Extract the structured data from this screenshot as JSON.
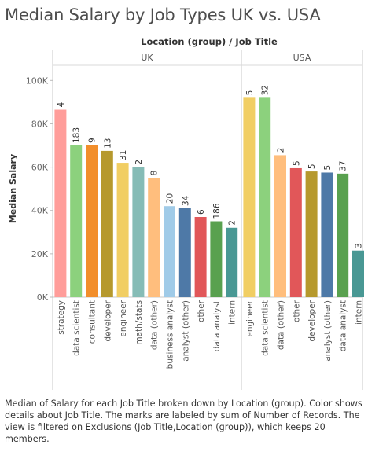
{
  "title": "Median Salary by Job Types UK vs. USA",
  "caption": "Median of Salary for each Job Title broken down by Location (group).  Color shows details about Job Title.  The marks are labeled by sum of Number of Records. The view is filtered on Exclusions (Job Title,Location (group)), which keeps 20 members.",
  "chart_data": {
    "type": "bar",
    "header": "Location (group)  /  Job Title",
    "ylabel": "Median Salary",
    "ylim": [
      0,
      107000
    ],
    "yticks": [
      0,
      20000,
      40000,
      60000,
      80000,
      100000
    ],
    "ytick_labels": [
      "0K",
      "20K",
      "40K",
      "60K",
      "80K",
      "100K"
    ],
    "grid": false,
    "panels": [
      {
        "name": "UK",
        "bars": [
          {
            "job": "strategy",
            "value": 86500,
            "count": "4",
            "color": "#ff9d9a"
          },
          {
            "job": "data scientist",
            "value": 70000,
            "count": "183",
            "color": "#8cd17d"
          },
          {
            "job": "consultant",
            "value": 70000,
            "count": "9",
            "color": "#f28e2b"
          },
          {
            "job": "developer",
            "value": 67500,
            "count": "13",
            "color": "#b6992d"
          },
          {
            "job": "engineer",
            "value": 62000,
            "count": "31",
            "color": "#f1ce63"
          },
          {
            "job": "math/stats",
            "value": 60000,
            "count": "2",
            "color": "#86bcb6"
          },
          {
            "job": "data (other)",
            "value": 55000,
            "count": "8",
            "color": "#ffbe7d"
          },
          {
            "job": "business analyst",
            "value": 42000,
            "count": "20",
            "color": "#a0cbe8"
          },
          {
            "job": "analyst (other)",
            "value": 41000,
            "count": "34",
            "color": "#4e79a7"
          },
          {
            "job": "other",
            "value": 37000,
            "count": "6",
            "color": "#e15759"
          },
          {
            "job": "data analyst",
            "value": 35000,
            "count": "186",
            "color": "#59a14f"
          },
          {
            "job": "intern",
            "value": 32000,
            "count": "2",
            "color": "#499894"
          }
        ]
      },
      {
        "name": "USA",
        "bars": [
          {
            "job": "engineer",
            "value": 92000,
            "count": "5",
            "color": "#f1ce63"
          },
          {
            "job": "data scientist",
            "value": 92000,
            "count": "32",
            "color": "#8cd17d"
          },
          {
            "job": "data (other)",
            "value": 65500,
            "count": "2",
            "color": "#ffbe7d"
          },
          {
            "job": "other",
            "value": 59500,
            "count": "5",
            "color": "#e15759"
          },
          {
            "job": "developer",
            "value": 58000,
            "count": "5",
            "color": "#b6992d"
          },
          {
            "job": "analyst (other)",
            "value": 57500,
            "count": "5",
            "color": "#4e79a7"
          },
          {
            "job": "data analyst",
            "value": 57000,
            "count": "37",
            "color": "#59a14f"
          },
          {
            "job": "intern",
            "value": 21500,
            "count": "3",
            "color": "#499894"
          }
        ]
      }
    ]
  }
}
